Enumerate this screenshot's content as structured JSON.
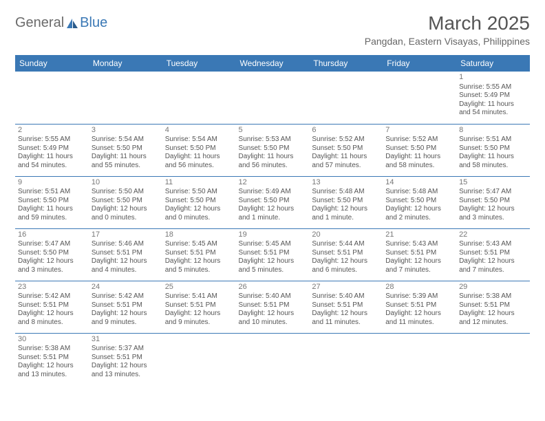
{
  "logo": {
    "text_general": "General",
    "text_blue": "Blue"
  },
  "title": "March 2025",
  "subtitle": "Pangdan, Eastern Visayas, Philippines",
  "colors": {
    "header_bg": "#3a78b5",
    "header_text": "#ffffff",
    "cell_border": "#3a78b5",
    "body_text": "#555555",
    "daynum_text": "#777777",
    "logo_gray": "#6a6a6a",
    "logo_blue": "#3a78b5",
    "page_bg": "#ffffff"
  },
  "typography": {
    "title_fontsize": 28,
    "subtitle_fontsize": 14,
    "dayheader_fontsize": 12,
    "cell_fontsize": 10,
    "daynum_fontsize": 11,
    "font_family": "Arial"
  },
  "day_headers": [
    "Sunday",
    "Monday",
    "Tuesday",
    "Wednesday",
    "Thursday",
    "Friday",
    "Saturday"
  ],
  "weeks": [
    [
      null,
      null,
      null,
      null,
      null,
      null,
      {
        "n": "1",
        "sr": "Sunrise: 5:55 AM",
        "ss": "Sunset: 5:49 PM",
        "dl": "Daylight: 11 hours and 54 minutes."
      }
    ],
    [
      {
        "n": "2",
        "sr": "Sunrise: 5:55 AM",
        "ss": "Sunset: 5:49 PM",
        "dl": "Daylight: 11 hours and 54 minutes."
      },
      {
        "n": "3",
        "sr": "Sunrise: 5:54 AM",
        "ss": "Sunset: 5:50 PM",
        "dl": "Daylight: 11 hours and 55 minutes."
      },
      {
        "n": "4",
        "sr": "Sunrise: 5:54 AM",
        "ss": "Sunset: 5:50 PM",
        "dl": "Daylight: 11 hours and 56 minutes."
      },
      {
        "n": "5",
        "sr": "Sunrise: 5:53 AM",
        "ss": "Sunset: 5:50 PM",
        "dl": "Daylight: 11 hours and 56 minutes."
      },
      {
        "n": "6",
        "sr": "Sunrise: 5:52 AM",
        "ss": "Sunset: 5:50 PM",
        "dl": "Daylight: 11 hours and 57 minutes."
      },
      {
        "n": "7",
        "sr": "Sunrise: 5:52 AM",
        "ss": "Sunset: 5:50 PM",
        "dl": "Daylight: 11 hours and 58 minutes."
      },
      {
        "n": "8",
        "sr": "Sunrise: 5:51 AM",
        "ss": "Sunset: 5:50 PM",
        "dl": "Daylight: 11 hours and 58 minutes."
      }
    ],
    [
      {
        "n": "9",
        "sr": "Sunrise: 5:51 AM",
        "ss": "Sunset: 5:50 PM",
        "dl": "Daylight: 11 hours and 59 minutes."
      },
      {
        "n": "10",
        "sr": "Sunrise: 5:50 AM",
        "ss": "Sunset: 5:50 PM",
        "dl": "Daylight: 12 hours and 0 minutes."
      },
      {
        "n": "11",
        "sr": "Sunrise: 5:50 AM",
        "ss": "Sunset: 5:50 PM",
        "dl": "Daylight: 12 hours and 0 minutes."
      },
      {
        "n": "12",
        "sr": "Sunrise: 5:49 AM",
        "ss": "Sunset: 5:50 PM",
        "dl": "Daylight: 12 hours and 1 minute."
      },
      {
        "n": "13",
        "sr": "Sunrise: 5:48 AM",
        "ss": "Sunset: 5:50 PM",
        "dl": "Daylight: 12 hours and 1 minute."
      },
      {
        "n": "14",
        "sr": "Sunrise: 5:48 AM",
        "ss": "Sunset: 5:50 PM",
        "dl": "Daylight: 12 hours and 2 minutes."
      },
      {
        "n": "15",
        "sr": "Sunrise: 5:47 AM",
        "ss": "Sunset: 5:50 PM",
        "dl": "Daylight: 12 hours and 3 minutes."
      }
    ],
    [
      {
        "n": "16",
        "sr": "Sunrise: 5:47 AM",
        "ss": "Sunset: 5:50 PM",
        "dl": "Daylight: 12 hours and 3 minutes."
      },
      {
        "n": "17",
        "sr": "Sunrise: 5:46 AM",
        "ss": "Sunset: 5:51 PM",
        "dl": "Daylight: 12 hours and 4 minutes."
      },
      {
        "n": "18",
        "sr": "Sunrise: 5:45 AM",
        "ss": "Sunset: 5:51 PM",
        "dl": "Daylight: 12 hours and 5 minutes."
      },
      {
        "n": "19",
        "sr": "Sunrise: 5:45 AM",
        "ss": "Sunset: 5:51 PM",
        "dl": "Daylight: 12 hours and 5 minutes."
      },
      {
        "n": "20",
        "sr": "Sunrise: 5:44 AM",
        "ss": "Sunset: 5:51 PM",
        "dl": "Daylight: 12 hours and 6 minutes."
      },
      {
        "n": "21",
        "sr": "Sunrise: 5:43 AM",
        "ss": "Sunset: 5:51 PM",
        "dl": "Daylight: 12 hours and 7 minutes."
      },
      {
        "n": "22",
        "sr": "Sunrise: 5:43 AM",
        "ss": "Sunset: 5:51 PM",
        "dl": "Daylight: 12 hours and 7 minutes."
      }
    ],
    [
      {
        "n": "23",
        "sr": "Sunrise: 5:42 AM",
        "ss": "Sunset: 5:51 PM",
        "dl": "Daylight: 12 hours and 8 minutes."
      },
      {
        "n": "24",
        "sr": "Sunrise: 5:42 AM",
        "ss": "Sunset: 5:51 PM",
        "dl": "Daylight: 12 hours and 9 minutes."
      },
      {
        "n": "25",
        "sr": "Sunrise: 5:41 AM",
        "ss": "Sunset: 5:51 PM",
        "dl": "Daylight: 12 hours and 9 minutes."
      },
      {
        "n": "26",
        "sr": "Sunrise: 5:40 AM",
        "ss": "Sunset: 5:51 PM",
        "dl": "Daylight: 12 hours and 10 minutes."
      },
      {
        "n": "27",
        "sr": "Sunrise: 5:40 AM",
        "ss": "Sunset: 5:51 PM",
        "dl": "Daylight: 12 hours and 11 minutes."
      },
      {
        "n": "28",
        "sr": "Sunrise: 5:39 AM",
        "ss": "Sunset: 5:51 PM",
        "dl": "Daylight: 12 hours and 11 minutes."
      },
      {
        "n": "29",
        "sr": "Sunrise: 5:38 AM",
        "ss": "Sunset: 5:51 PM",
        "dl": "Daylight: 12 hours and 12 minutes."
      }
    ],
    [
      {
        "n": "30",
        "sr": "Sunrise: 5:38 AM",
        "ss": "Sunset: 5:51 PM",
        "dl": "Daylight: 12 hours and 13 minutes."
      },
      {
        "n": "31",
        "sr": "Sunrise: 5:37 AM",
        "ss": "Sunset: 5:51 PM",
        "dl": "Daylight: 12 hours and 13 minutes."
      },
      null,
      null,
      null,
      null,
      null
    ]
  ]
}
